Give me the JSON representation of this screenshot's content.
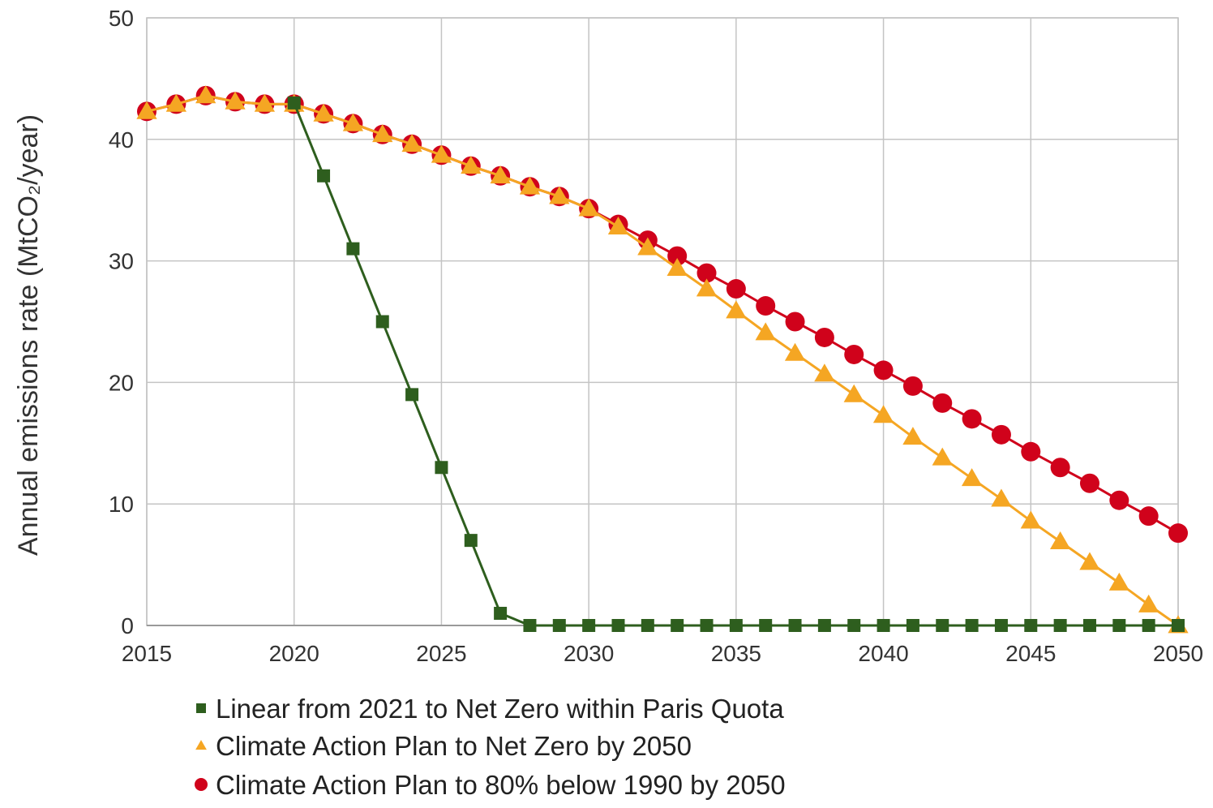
{
  "chart_data": {
    "type": "line",
    "ylabel": "Annual emissions rate (MtCO₂/year)",
    "xlabel": "",
    "xlim": [
      2015,
      2050
    ],
    "ylim": [
      0,
      50
    ],
    "x_ticks": [
      "2015",
      "2020",
      "2025",
      "2030",
      "2035",
      "2040",
      "2045",
      "2050"
    ],
    "y_ticks": [
      "0",
      "10",
      "20",
      "30",
      "40",
      "50"
    ],
    "grid": true,
    "legend_position": "bottom",
    "series": [
      {
        "name": "Linear from 2021 to Net Zero within Paris Quota",
        "marker": "square",
        "color": "#2e5e1e",
        "x": [
          2020,
          2021,
          2022,
          2023,
          2024,
          2025,
          2026,
          2027,
          2028,
          2029,
          2030,
          2031,
          2032,
          2033,
          2034,
          2035,
          2036,
          2037,
          2038,
          2039,
          2040,
          2041,
          2042,
          2043,
          2044,
          2045,
          2046,
          2047,
          2048,
          2049,
          2050
        ],
        "values": [
          43,
          37,
          31,
          25,
          19,
          13,
          7,
          1,
          0,
          0,
          0,
          0,
          0,
          0,
          0,
          0,
          0,
          0,
          0,
          0,
          0,
          0,
          0,
          0,
          0,
          0,
          0,
          0,
          0,
          0,
          0
        ]
      },
      {
        "name": "Climate Action Plan to Net Zero by 2050",
        "marker": "triangle",
        "color": "#f5a623",
        "x": [
          2015,
          2016,
          2017,
          2018,
          2019,
          2020,
          2021,
          2022,
          2023,
          2024,
          2025,
          2026,
          2027,
          2028,
          2029,
          2030,
          2031,
          2032,
          2033,
          2034,
          2035,
          2036,
          2037,
          2038,
          2039,
          2040,
          2041,
          2042,
          2043,
          2044,
          2045,
          2046,
          2047,
          2048,
          2049,
          2050
        ],
        "values": [
          42.3,
          42.9,
          43.6,
          43.1,
          42.9,
          42.9,
          42.1,
          41.3,
          40.4,
          39.6,
          38.7,
          37.8,
          37.0,
          36.1,
          35.3,
          34.3,
          32.8,
          31.1,
          29.4,
          27.7,
          25.9,
          24.1,
          22.4,
          20.7,
          19.0,
          17.3,
          15.5,
          13.8,
          12.1,
          10.4,
          8.6,
          6.9,
          5.2,
          3.5,
          1.7,
          0
        ]
      },
      {
        "name": "Climate Action Plan to 80% below 1990 by 2050",
        "marker": "circle",
        "color": "#d0021b",
        "x": [
          2015,
          2016,
          2017,
          2018,
          2019,
          2020,
          2021,
          2022,
          2023,
          2024,
          2025,
          2026,
          2027,
          2028,
          2029,
          2030,
          2031,
          2032,
          2033,
          2034,
          2035,
          2036,
          2037,
          2038,
          2039,
          2040,
          2041,
          2042,
          2043,
          2044,
          2045,
          2046,
          2047,
          2048,
          2049,
          2050
        ],
        "values": [
          42.3,
          42.9,
          43.6,
          43.1,
          42.9,
          42.9,
          42.1,
          41.3,
          40.4,
          39.6,
          38.7,
          37.8,
          37.0,
          36.1,
          35.3,
          34.3,
          33.0,
          31.7,
          30.4,
          29.0,
          27.7,
          26.3,
          25.0,
          23.7,
          22.3,
          21.0,
          19.7,
          18.3,
          17.0,
          15.7,
          14.3,
          13.0,
          11.7,
          10.3,
          9.0,
          7.6
        ]
      }
    ]
  }
}
